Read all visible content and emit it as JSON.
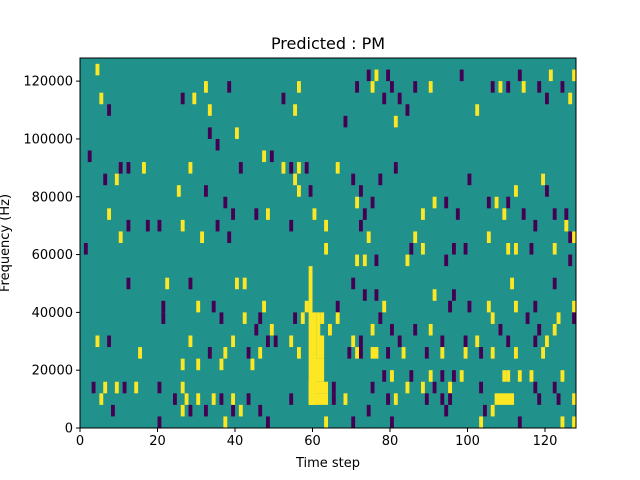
{
  "chart_data": {
    "type": "heatmap",
    "title": "Predicted : PM",
    "xlabel": "Time step",
    "ylabel": "Frequency (Hz)",
    "xlim": [
      0,
      128
    ],
    "ylim": [
      0,
      128000
    ],
    "x_ticks": [
      0,
      20,
      40,
      60,
      80,
      100,
      120
    ],
    "y_ticks": [
      0,
      20000,
      40000,
      60000,
      80000,
      100000,
      120000
    ],
    "x_tick_labels": [
      "0",
      "20",
      "40",
      "60",
      "80",
      "100",
      "120"
    ],
    "y_tick_labels": [
      "0",
      "20000",
      "40000",
      "60000",
      "80000",
      "100000",
      "120000"
    ],
    "grid": false,
    "legend": "none",
    "colormap": "viridis",
    "background_value": 0,
    "colors": {
      "background": "#21918c",
      "low": "#440154",
      "high": "#fde725"
    },
    "bin_height_hz": 4000,
    "cells": [
      [
        4,
        124000,
        1
      ],
      [
        5,
        114000,
        1
      ],
      [
        7,
        110000,
        -1
      ],
      [
        2,
        94000,
        -1
      ],
      [
        6,
        86000,
        -1
      ],
      [
        9,
        86000,
        1
      ],
      [
        10,
        90000,
        -1
      ],
      [
        12,
        90000,
        -1
      ],
      [
        16,
        90000,
        1
      ],
      [
        25,
        82000,
        1
      ],
      [
        28,
        90000,
        1
      ],
      [
        32,
        82000,
        -1
      ],
      [
        26,
        114000,
        -1
      ],
      [
        29,
        114000,
        1
      ],
      [
        32,
        118000,
        1
      ],
      [
        33,
        110000,
        1
      ],
      [
        38,
        118000,
        -1
      ],
      [
        33,
        102000,
        -1
      ],
      [
        35,
        98000,
        -1
      ],
      [
        40,
        102000,
        1
      ],
      [
        37,
        78000,
        -1
      ],
      [
        39,
        74000,
        -1
      ],
      [
        41,
        90000,
        -1
      ],
      [
        47,
        94000,
        1
      ],
      [
        49,
        94000,
        -1
      ],
      [
        52,
        90000,
        1
      ],
      [
        54,
        90000,
        -1
      ],
      [
        56,
        90000,
        1
      ],
      [
        58,
        90000,
        -1
      ],
      [
        55,
        86000,
        1
      ],
      [
        56,
        82000,
        1
      ],
      [
        59,
        82000,
        -1
      ],
      [
        52,
        114000,
        -1
      ],
      [
        55,
        110000,
        1
      ],
      [
        56,
        118000,
        1
      ],
      [
        66,
        90000,
        1
      ],
      [
        68,
        106000,
        -1
      ],
      [
        71,
        118000,
        -1
      ],
      [
        74,
        122000,
        -1
      ],
      [
        76,
        122000,
        1
      ],
      [
        79,
        122000,
        -1
      ],
      [
        75,
        118000,
        1
      ],
      [
        78,
        114000,
        -1
      ],
      [
        80,
        118000,
        -1
      ],
      [
        82,
        114000,
        -1
      ],
      [
        84,
        110000,
        -1
      ],
      [
        81,
        106000,
        1
      ],
      [
        86,
        118000,
        -1
      ],
      [
        90,
        118000,
        1
      ],
      [
        98,
        122000,
        -1
      ],
      [
        102,
        110000,
        1
      ],
      [
        106,
        118000,
        -1
      ],
      [
        108,
        118000,
        1
      ],
      [
        110,
        118000,
        -1
      ],
      [
        113,
        122000,
        -1
      ],
      [
        114,
        118000,
        1
      ],
      [
        118,
        118000,
        -1
      ],
      [
        120,
        114000,
        -1
      ],
      [
        121,
        122000,
        1
      ],
      [
        124,
        118000,
        -1
      ],
      [
        126,
        114000,
        1
      ],
      [
        127,
        122000,
        1
      ],
      [
        70,
        86000,
        -1
      ],
      [
        72,
        82000,
        -1
      ],
      [
        77,
        86000,
        -1
      ],
      [
        81,
        90000,
        -1
      ],
      [
        71,
        78000,
        1
      ],
      [
        73,
        74000,
        -1
      ],
      [
        75,
        78000,
        -1
      ],
      [
        72,
        70000,
        -1
      ],
      [
        74,
        66000,
        1
      ],
      [
        86,
        66000,
        1
      ],
      [
        88,
        74000,
        1
      ],
      [
        91,
        78000,
        1
      ],
      [
        94,
        78000,
        -1
      ],
      [
        97,
        74000,
        -1
      ],
      [
        100,
        86000,
        -1
      ],
      [
        105,
        78000,
        -1
      ],
      [
        107,
        78000,
        1
      ],
      [
        109,
        74000,
        1
      ],
      [
        110,
        78000,
        -1
      ],
      [
        112,
        82000,
        1
      ],
      [
        114,
        74000,
        -1
      ],
      [
        117,
        70000,
        -1
      ],
      [
        119,
        86000,
        1
      ],
      [
        120,
        82000,
        -1
      ],
      [
        122,
        74000,
        -1
      ],
      [
        125,
        70000,
        1
      ],
      [
        126,
        66000,
        -1
      ],
      [
        125,
        74000,
        -1
      ],
      [
        127,
        66000,
        1
      ],
      [
        7,
        74000,
        1
      ],
      [
        12,
        70000,
        -1
      ],
      [
        10,
        66000,
        1
      ],
      [
        17,
        70000,
        -1
      ],
      [
        1,
        62000,
        -1
      ],
      [
        20,
        70000,
        -1
      ],
      [
        26,
        70000,
        1
      ],
      [
        31,
        66000,
        1
      ],
      [
        35,
        70000,
        -1
      ],
      [
        38,
        66000,
        -1
      ],
      [
        45,
        74000,
        -1
      ],
      [
        48,
        74000,
        1
      ],
      [
        54,
        70000,
        -1
      ],
      [
        60,
        74000,
        1
      ],
      [
        63,
        62000,
        1
      ],
      [
        63,
        70000,
        1
      ],
      [
        71,
        58000,
        1
      ],
      [
        73,
        58000,
        1
      ],
      [
        76,
        58000,
        -1
      ],
      [
        84,
        58000,
        1
      ],
      [
        85,
        62000,
        -1
      ],
      [
        88,
        62000,
        1
      ],
      [
        94,
        58000,
        -1
      ],
      [
        96,
        62000,
        -1
      ],
      [
        99,
        62000,
        -1
      ],
      [
        105,
        66000,
        1
      ],
      [
        110,
        62000,
        1
      ],
      [
        112,
        62000,
        1
      ],
      [
        116,
        62000,
        -1
      ],
      [
        122,
        62000,
        1
      ],
      [
        126,
        58000,
        -1
      ],
      [
        12,
        50000,
        -1
      ],
      [
        22,
        50000,
        1
      ],
      [
        28,
        50000,
        -1
      ],
      [
        40,
        50000,
        1
      ],
      [
        42,
        50000,
        1
      ],
      [
        70,
        50000,
        -1
      ],
      [
        73,
        46000,
        -1
      ],
      [
        76,
        46000,
        -1
      ],
      [
        78,
        42000,
        1
      ],
      [
        91,
        46000,
        1
      ],
      [
        95,
        42000,
        -1
      ],
      [
        96,
        46000,
        -1
      ],
      [
        100,
        42000,
        -1
      ],
      [
        105,
        42000,
        1
      ],
      [
        111,
        50000,
        1
      ],
      [
        112,
        42000,
        1
      ],
      [
        115,
        38000,
        -1
      ],
      [
        117,
        42000,
        -1
      ],
      [
        122,
        50000,
        -1
      ],
      [
        123,
        38000,
        1
      ],
      [
        127,
        42000,
        1
      ],
      [
        128,
        38000,
        -1
      ],
      [
        118,
        34000,
        -1
      ],
      [
        117,
        30000,
        -1
      ],
      [
        122,
        34000,
        1
      ],
      [
        21,
        42000,
        -1
      ],
      [
        21,
        38000,
        -1
      ],
      [
        30,
        42000,
        1
      ],
      [
        34,
        42000,
        -1
      ],
      [
        36,
        38000,
        -1
      ],
      [
        42,
        38000,
        1
      ],
      [
        46,
        38000,
        -1
      ],
      [
        47,
        42000,
        1
      ],
      [
        45,
        34000,
        -1
      ],
      [
        48,
        30000,
        -1
      ],
      [
        49,
        34000,
        1
      ],
      [
        55,
        38000,
        -1
      ],
      [
        57,
        38000,
        1
      ],
      [
        58,
        42000,
        1
      ],
      [
        62,
        38000,
        1
      ],
      [
        64,
        34000,
        1
      ],
      [
        66,
        42000,
        -1
      ],
      [
        66,
        38000,
        1
      ],
      [
        70,
        30000,
        1
      ],
      [
        72,
        30000,
        -1
      ],
      [
        75,
        34000,
        1
      ],
      [
        77,
        38000,
        -1
      ],
      [
        80,
        34000,
        -1
      ],
      [
        82,
        30000,
        -1
      ],
      [
        86,
        34000,
        -1
      ],
      [
        90,
        34000,
        1
      ],
      [
        93,
        30000,
        -1
      ],
      [
        99,
        30000,
        -1
      ],
      [
        102,
        30000,
        1
      ],
      [
        106,
        38000,
        1
      ],
      [
        108,
        34000,
        -1
      ],
      [
        110,
        30000,
        -1
      ],
      [
        4,
        30000,
        1
      ],
      [
        7,
        30000,
        -1
      ],
      [
        15,
        26000,
        1
      ],
      [
        26,
        22000,
        1
      ],
      [
        28,
        30000,
        1
      ],
      [
        33,
        26000,
        -1
      ],
      [
        37,
        26000,
        1
      ],
      [
        39,
        30000,
        1
      ],
      [
        43,
        26000,
        -1
      ],
      [
        46,
        26000,
        1
      ],
      [
        50,
        30000,
        -1
      ],
      [
        54,
        30000,
        1
      ],
      [
        56,
        26000,
        1
      ],
      [
        69,
        26000,
        -1
      ],
      [
        71,
        26000,
        1
      ],
      [
        72,
        26000,
        -1
      ],
      [
        75,
        26000,
        1
      ],
      [
        76,
        26000,
        1
      ],
      [
        79,
        26000,
        -1
      ],
      [
        83,
        26000,
        1
      ],
      [
        89,
        26000,
        -1
      ],
      [
        93,
        26000,
        1
      ],
      [
        99,
        26000,
        1
      ],
      [
        103,
        26000,
        -1
      ],
      [
        106,
        26000,
        1
      ],
      [
        112,
        26000,
        1
      ],
      [
        119,
        26000,
        1
      ],
      [
        120,
        30000,
        1
      ],
      [
        30,
        22000,
        1
      ],
      [
        36,
        22000,
        1
      ],
      [
        44,
        22000,
        1
      ],
      [
        3,
        14000,
        -1
      ],
      [
        6,
        14000,
        1
      ],
      [
        9,
        14000,
        1
      ],
      [
        11,
        14000,
        -1
      ],
      [
        5,
        10000,
        1
      ],
      [
        8,
        6000,
        -1
      ],
      [
        14,
        14000,
        1
      ],
      [
        20,
        14000,
        -1
      ],
      [
        24,
        10000,
        -1
      ],
      [
        26,
        14000,
        1
      ],
      [
        27,
        10000,
        1
      ],
      [
        30,
        10000,
        1
      ],
      [
        34,
        10000,
        1
      ],
      [
        36,
        10000,
        -1
      ],
      [
        26,
        6000,
        1
      ],
      [
        28,
        6000,
        -1
      ],
      [
        32,
        6000,
        -1
      ],
      [
        39,
        6000,
        -1
      ],
      [
        39,
        10000,
        1
      ],
      [
        41,
        6000,
        1
      ],
      [
        43,
        10000,
        -1
      ],
      [
        54,
        10000,
        -1
      ],
      [
        46,
        6000,
        -1
      ],
      [
        65,
        14000,
        -1
      ],
      [
        65,
        10000,
        -1
      ],
      [
        68,
        10000,
        1
      ],
      [
        70,
        2000,
        -1
      ],
      [
        74,
        6000,
        -1
      ],
      [
        75,
        14000,
        -1
      ],
      [
        78,
        18000,
        -1
      ],
      [
        80,
        18000,
        1
      ],
      [
        81,
        10000,
        1
      ],
      [
        85,
        18000,
        -1
      ],
      [
        84,
        14000,
        1
      ],
      [
        90,
        18000,
        1
      ],
      [
        88,
        14000,
        1
      ],
      [
        89,
        10000,
        -1
      ],
      [
        91,
        14000,
        -1
      ],
      [
        93,
        18000,
        -1
      ],
      [
        95,
        14000,
        1
      ],
      [
        95,
        10000,
        -1
      ],
      [
        96,
        18000,
        -1
      ],
      [
        98,
        18000,
        1
      ],
      [
        93,
        10000,
        -1
      ],
      [
        103,
        14000,
        -1
      ],
      [
        104,
        6000,
        -1
      ],
      [
        106,
        6000,
        1
      ],
      [
        109,
        18000,
        1
      ],
      [
        110,
        18000,
        1
      ],
      [
        113,
        18000,
        1
      ],
      [
        116,
        18000,
        1
      ],
      [
        117,
        14000,
        -1
      ],
      [
        122,
        14000,
        -1
      ],
      [
        124,
        18000,
        1
      ],
      [
        118,
        10000,
        -1
      ],
      [
        123,
        10000,
        -1
      ],
      [
        128,
        10000,
        1
      ],
      [
        20,
        2000,
        -1
      ],
      [
        37,
        2000,
        1
      ],
      [
        48,
        2000,
        -1
      ],
      [
        63,
        2000,
        1
      ],
      [
        94,
        6000,
        -1
      ],
      [
        103,
        2000,
        1
      ],
      [
        80,
        2000,
        -1
      ],
      [
        113,
        2000,
        -1
      ],
      [
        124,
        2000,
        1
      ],
      [
        127,
        2000,
        1
      ],
      [
        79,
        10000,
        -1
      ]
    ],
    "bands": [
      [
        59,
        60,
        8000,
        56000,
        1
      ],
      [
        60,
        61,
        8000,
        40000,
        1
      ],
      [
        61,
        63,
        24000,
        32000,
        1
      ],
      [
        61,
        62,
        32000,
        40000,
        1
      ],
      [
        59,
        64,
        12000,
        16000,
        1
      ],
      [
        59,
        64,
        8000,
        12000,
        1
      ],
      [
        60,
        63,
        16000,
        24000,
        1
      ],
      [
        107,
        112,
        8000,
        12000,
        1
      ]
    ]
  }
}
